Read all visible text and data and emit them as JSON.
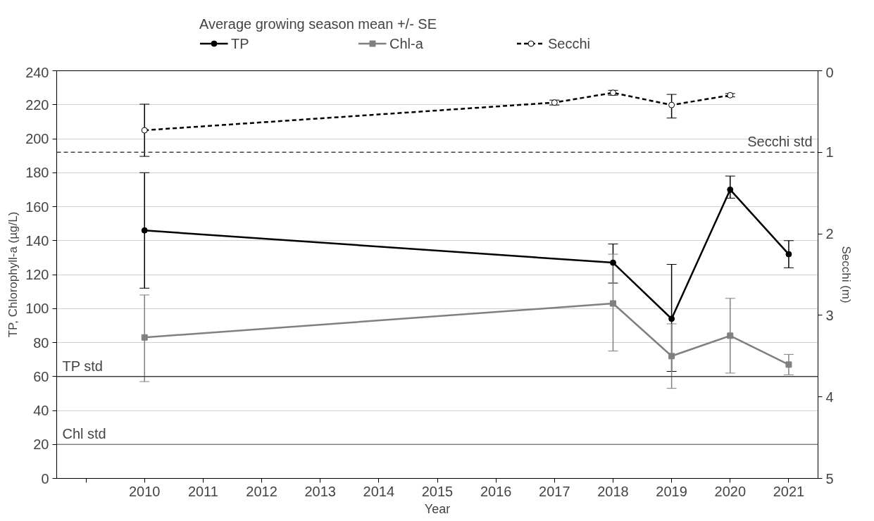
{
  "chart_data": {
    "type": "line",
    "legend_title": "Average growing season mean +/- SE",
    "xlabel": "Year",
    "ylabel": "TP, Chlorophyll-a (µg/L)",
    "y2label": "Secchi (m)",
    "xlim": [
      2008.5,
      2021.5
    ],
    "xticks": [
      {
        "value": 2009,
        "label": null
      },
      2010,
      2011,
      2012,
      2013,
      2014,
      2015,
      2016,
      2017,
      2018,
      2019,
      2020,
      2021
    ],
    "ylim": [
      0,
      240
    ],
    "yticks": [
      0,
      20,
      40,
      60,
      80,
      100,
      120,
      140,
      160,
      180,
      200,
      220,
      240
    ],
    "y2lim": [
      5,
      0
    ],
    "y2ticks": [
      0,
      1,
      2,
      3,
      4,
      5
    ],
    "grid": "y",
    "legend": "top",
    "series": [
      {
        "name": "TP",
        "color": "#000000",
        "marker": "circle",
        "line_style": "solid",
        "x": [
          2010,
          2018,
          2019,
          2020,
          2021
        ],
        "values": [
          146,
          127,
          94,
          170,
          132
        ],
        "errors": [
          [
            112,
            180
          ],
          [
            115,
            138
          ],
          [
            63,
            126
          ],
          [
            165,
            178
          ],
          [
            124,
            140
          ]
        ]
      },
      {
        "name": "Chl-a",
        "color": "#808080",
        "marker": "square",
        "line_style": "solid",
        "x": [
          2010,
          2018,
          2019,
          2020,
          2021
        ],
        "values": [
          83,
          103,
          72,
          84,
          67
        ],
        "errors": [
          [
            57,
            108
          ],
          [
            75,
            132
          ],
          [
            53,
            91
          ],
          [
            62,
            106
          ],
          [
            61,
            73
          ]
        ]
      },
      {
        "name": "Secchi",
        "color": "#000000",
        "marker": "circle_open",
        "line_style": "dashed",
        "axis": "y2",
        "x": [
          2010,
          2017,
          2018,
          2019,
          2020
        ],
        "values": [
          0.73,
          0.39,
          0.27,
          0.42,
          0.3
        ],
        "errors": [
          [
            0.41,
            1.05
          ],
          [
            0.36,
            0.42
          ],
          [
            0.24,
            0.3
          ],
          [
            0.29,
            0.58
          ],
          [
            0.28,
            0.32
          ]
        ]
      }
    ],
    "ref_lines": [
      {
        "axis": "y",
        "value": 60,
        "label": "TP std",
        "color": "#404040",
        "line_style": "solid"
      },
      {
        "axis": "y",
        "value": 20,
        "label": "Chl std",
        "color": "#808080",
        "line_style": "solid"
      },
      {
        "axis": "y2",
        "value": 1,
        "label": "Secchi std",
        "color": "#404040",
        "line_style": "dashed"
      }
    ]
  }
}
